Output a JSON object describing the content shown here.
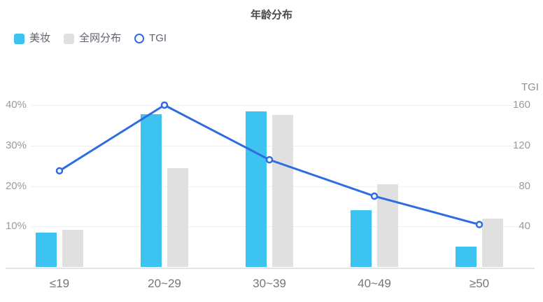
{
  "title": "年龄分布",
  "legend": [
    {
      "label": "美妆",
      "type": "bar",
      "color": "#3dc3f0"
    },
    {
      "label": "全网分布",
      "type": "bar",
      "color": "#e0e0e0"
    },
    {
      "label": "TGI",
      "type": "line",
      "color": "#2e6ce2"
    }
  ],
  "chart_data": {
    "type": "bar+line",
    "title": "年龄分布",
    "categories": [
      "≤19",
      "20~29",
      "30~39",
      "40~49",
      "≥50"
    ],
    "series": [
      {
        "name": "美妆",
        "type": "bar",
        "axis": "left",
        "unit": "%",
        "color": "#3dc3f0",
        "values": [
          8.5,
          37.8,
          38.5,
          14,
          5
        ]
      },
      {
        "name": "全网分布",
        "type": "bar",
        "axis": "left",
        "unit": "%",
        "color": "#e0e0e0",
        "values": [
          9.2,
          24.4,
          37.5,
          20.4,
          12
        ]
      },
      {
        "name": "TGI",
        "type": "line",
        "axis": "right",
        "color": "#2e6ce2",
        "values": [
          95,
          160,
          106,
          70,
          42
        ]
      }
    ],
    "left_axis": {
      "ticks": [
        "10%",
        "20%",
        "30%",
        "40%"
      ],
      "values": [
        10,
        20,
        30,
        40
      ],
      "min": 0,
      "max": 40
    },
    "right_axis": {
      "title": "TGI",
      "ticks": [
        "40",
        "80",
        "120",
        "160"
      ],
      "values": [
        40,
        80,
        120,
        160
      ],
      "min": 0,
      "max": 160
    },
    "grid": true,
    "legend_position": "top-left"
  }
}
